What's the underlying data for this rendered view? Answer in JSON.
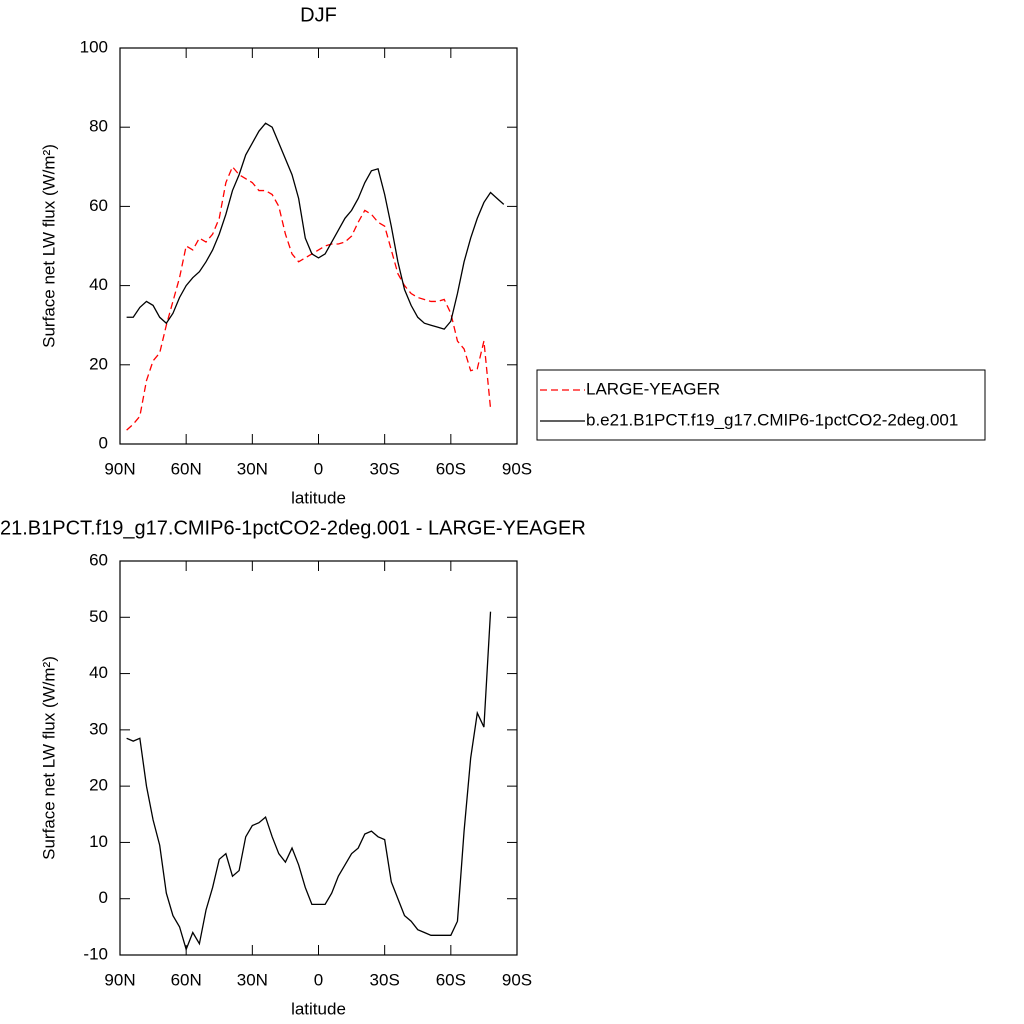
{
  "chart_data": [
    {
      "type": "line",
      "title": "DJF",
      "xlabel": "latitude",
      "ylabel": "Surface net LW flux (W/m²)",
      "x": [
        87,
        84,
        81,
        78,
        75,
        72,
        69,
        66,
        63,
        60,
        57,
        54,
        51,
        48,
        45,
        42,
        39,
        36,
        33,
        30,
        27,
        24,
        21,
        18,
        15,
        12,
        9,
        6,
        3,
        0,
        -3,
        -6,
        -9,
        -12,
        -15,
        -18,
        -21,
        -24,
        -27,
        -30,
        -33,
        -36,
        -39,
        -42,
        -45,
        -48,
        -51,
        -54,
        -57,
        -60,
        -63,
        -66,
        -69,
        -72,
        -75,
        -78,
        -81,
        -84
      ],
      "xlim": [
        90,
        -90
      ],
      "xticks": [
        {
          "value": 90,
          "label": "90N"
        },
        {
          "value": 60,
          "label": "60N"
        },
        {
          "value": 30,
          "label": "30N"
        },
        0,
        {
          "value": -30,
          "label": "30S"
        },
        {
          "value": -60,
          "label": "60S"
        },
        {
          "value": -90,
          "label": "90S"
        }
      ],
      "ylim": [
        0,
        100
      ],
      "yticks": [
        0,
        20,
        40,
        60,
        80,
        100
      ],
      "legend": "right",
      "series": [
        {
          "name": "LARGE-YEAGER",
          "color": "#ff0000",
          "dash": true,
          "values": [
            3.5,
            5,
            7,
            16,
            21,
            23,
            30,
            36,
            42,
            50,
            49,
            52,
            51,
            53,
            57,
            66,
            70,
            68,
            67,
            66,
            64,
            64,
            63,
            60,
            53,
            48,
            46,
            47,
            48,
            49,
            50,
            50.5,
            50.5,
            51,
            52.5,
            56,
            59,
            58,
            56,
            55,
            49,
            43,
            40,
            38,
            37,
            36.5,
            36,
            36,
            36.5,
            33,
            26,
            24,
            18.5,
            19,
            26,
            9,
            null,
            null
          ]
        },
        {
          "name": "b.e21.B1PCT.f19_g17.CMIP6-1pctCO2-2deg.001",
          "color": "#000000",
          "dash": false,
          "values": [
            32,
            32,
            34.5,
            36,
            35,
            32,
            30.5,
            33,
            37,
            40,
            42,
            43.5,
            46,
            49,
            53,
            58,
            64,
            68,
            73,
            76,
            79,
            81,
            80,
            76,
            72,
            68,
            62,
            52,
            48,
            47,
            48,
            51,
            54,
            57,
            59,
            62,
            66,
            69,
            69.5,
            63,
            55,
            46,
            39,
            35,
            32,
            30.5,
            30,
            29.5,
            29,
            31,
            38,
            46,
            52,
            57,
            61,
            63.5,
            62,
            60.5
          ]
        }
      ]
    },
    {
      "type": "line",
      "title": "21.B1PCT.f19_g17.CMIP6-1pctCO2-2deg.001 - LARGE-YEAGER",
      "xlabel": "latitude",
      "ylabel": "Surface net LW flux (W/m²)",
      "x": [
        87,
        84,
        81,
        78,
        75,
        72,
        69,
        66,
        63,
        60,
        57,
        54,
        51,
        48,
        45,
        42,
        39,
        36,
        33,
        30,
        27,
        24,
        21,
        18,
        15,
        12,
        9,
        6,
        3,
        0,
        -3,
        -6,
        -9,
        -12,
        -15,
        -18,
        -21,
        -24,
        -27,
        -30,
        -33,
        -36,
        -39,
        -42,
        -45,
        -48,
        -51,
        -54,
        -57,
        -60,
        -63,
        -66,
        -69,
        -72,
        -75,
        -78,
        -81,
        -84
      ],
      "xlim": [
        90,
        -90
      ],
      "xticks": [
        {
          "value": 90,
          "label": "90N"
        },
        {
          "value": 60,
          "label": "60N"
        },
        {
          "value": 30,
          "label": "30N"
        },
        0,
        {
          "value": -30,
          "label": "30S"
        },
        {
          "value": -60,
          "label": "60S"
        },
        {
          "value": -90,
          "label": "90S"
        }
      ],
      "ylim": [
        -10,
        60
      ],
      "yticks": [
        -10,
        0,
        10,
        20,
        30,
        40,
        50,
        60
      ],
      "series": [
        {
          "color": "#000000",
          "dash": false,
          "values": [
            28.5,
            28,
            28.5,
            20,
            14,
            9.5,
            1,
            -3,
            -5,
            -9,
            -6,
            -8,
            -2,
            2,
            7,
            8,
            4,
            5,
            11,
            13,
            13.5,
            14.5,
            11,
            8,
            6.5,
            9,
            6,
            2,
            -1,
            -1,
            -1,
            1,
            4,
            6,
            8,
            9,
            11.5,
            12,
            11,
            10.5,
            3,
            0,
            -3,
            -4,
            -5.5,
            -6,
            -6.5,
            -6.5,
            -6.5,
            -6.5,
            -4,
            12,
            25,
            33,
            30.5,
            51,
            null,
            null
          ]
        }
      ]
    }
  ]
}
